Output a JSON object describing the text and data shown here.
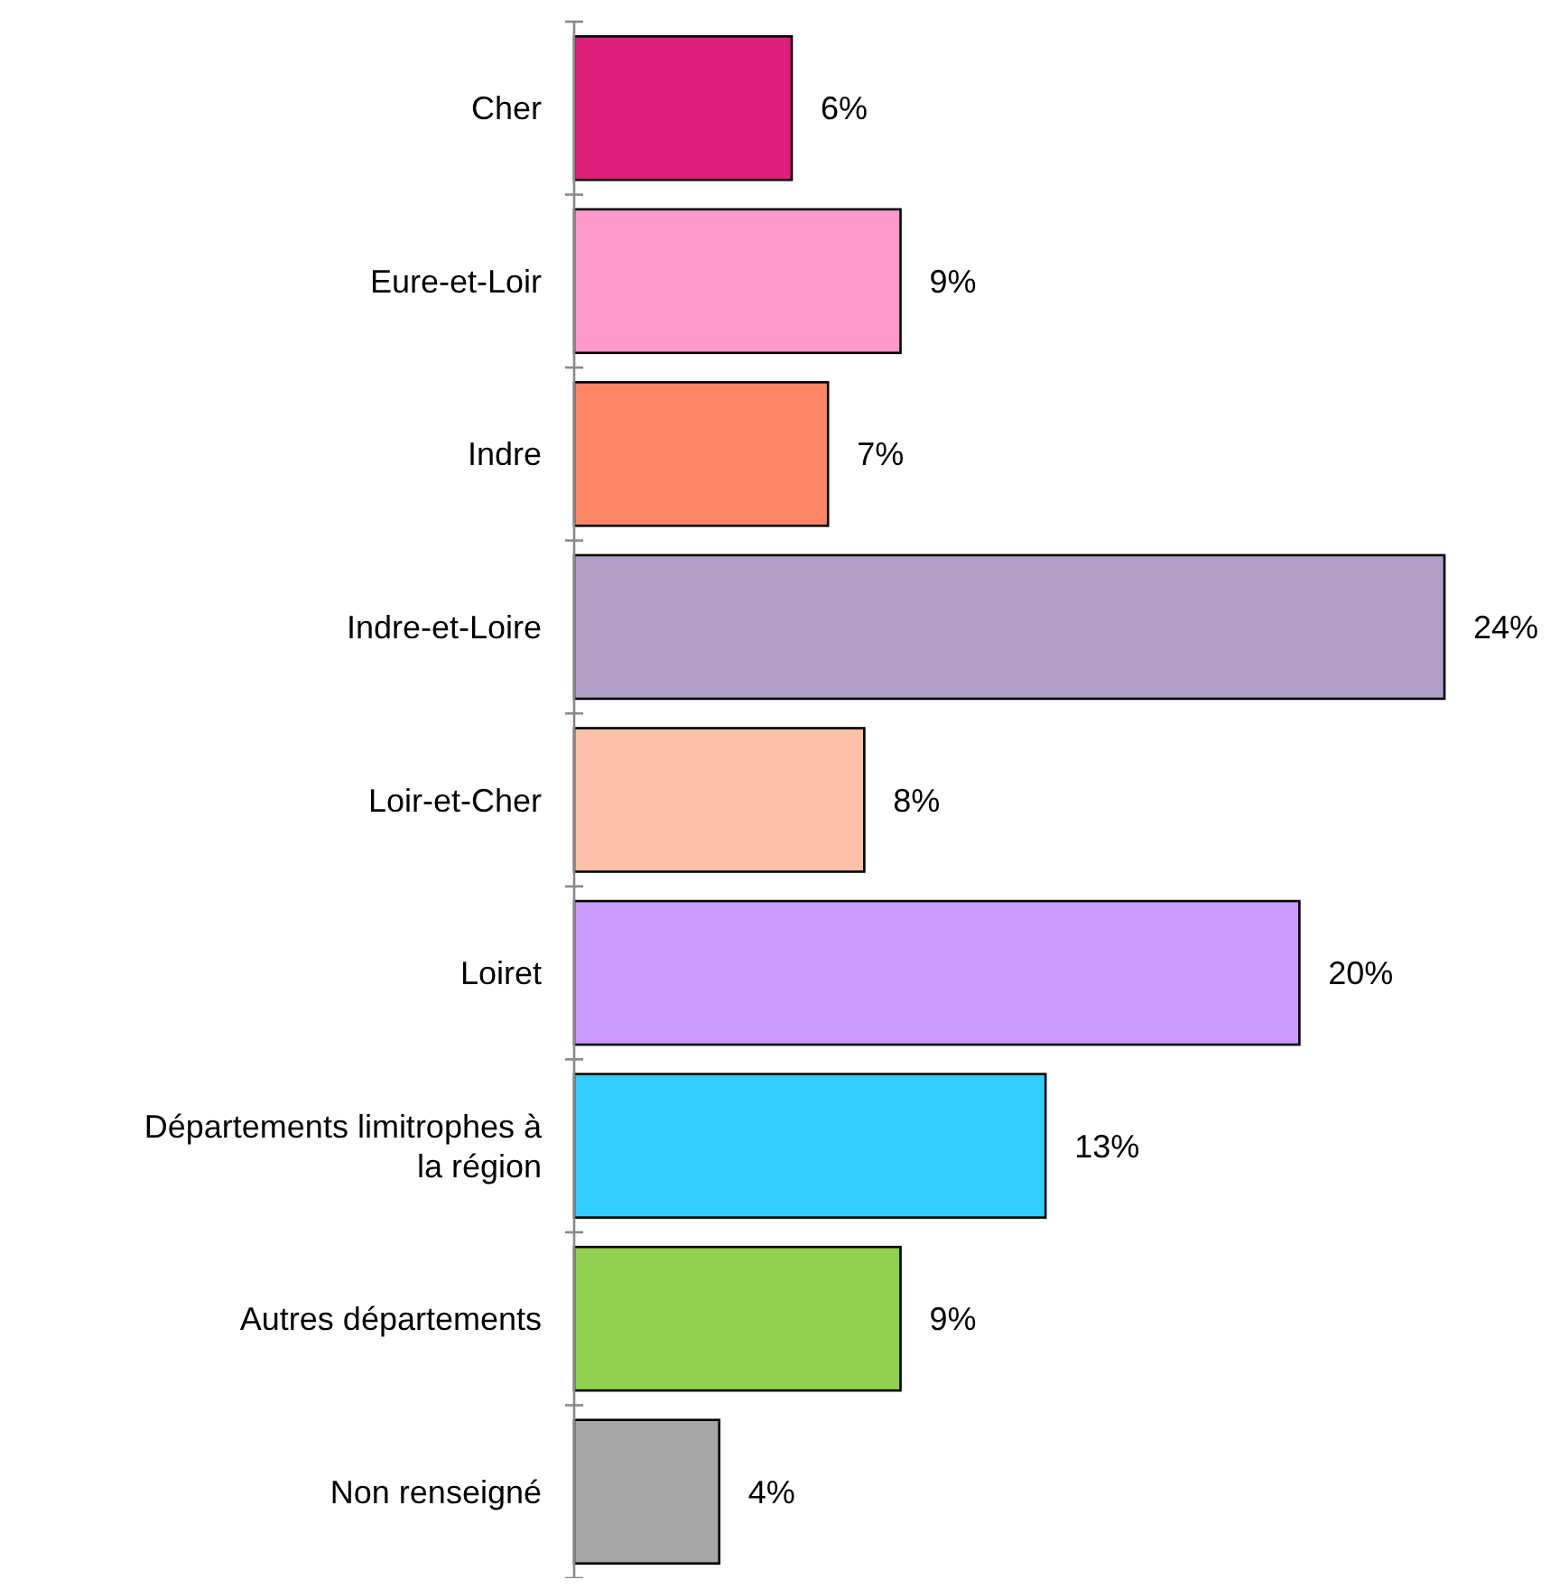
{
  "chart_data": {
    "type": "bar",
    "orientation": "horizontal",
    "categories": [
      "Cher",
      "Eure-et-Loir",
      "Indre",
      "Indre-et-Loire",
      "Loir-et-Cher",
      "Loiret",
      "Départements limitrophes à la région",
      "Autres départements",
      "Non renseigné"
    ],
    "values": [
      6,
      9,
      7,
      24,
      8,
      20,
      13,
      9,
      4
    ],
    "value_labels": [
      "6%",
      "9%",
      "7%",
      "24%",
      "8%",
      "20%",
      "13%",
      "9%",
      "4%"
    ],
    "colors": [
      "#de1f7a",
      "#ff99cc",
      "#ff8566",
      "#b1a0c7",
      "#ffc0a8",
      "#cc99ff",
      "#33ccff",
      "#92d050",
      "#a6a6a6"
    ]
  }
}
